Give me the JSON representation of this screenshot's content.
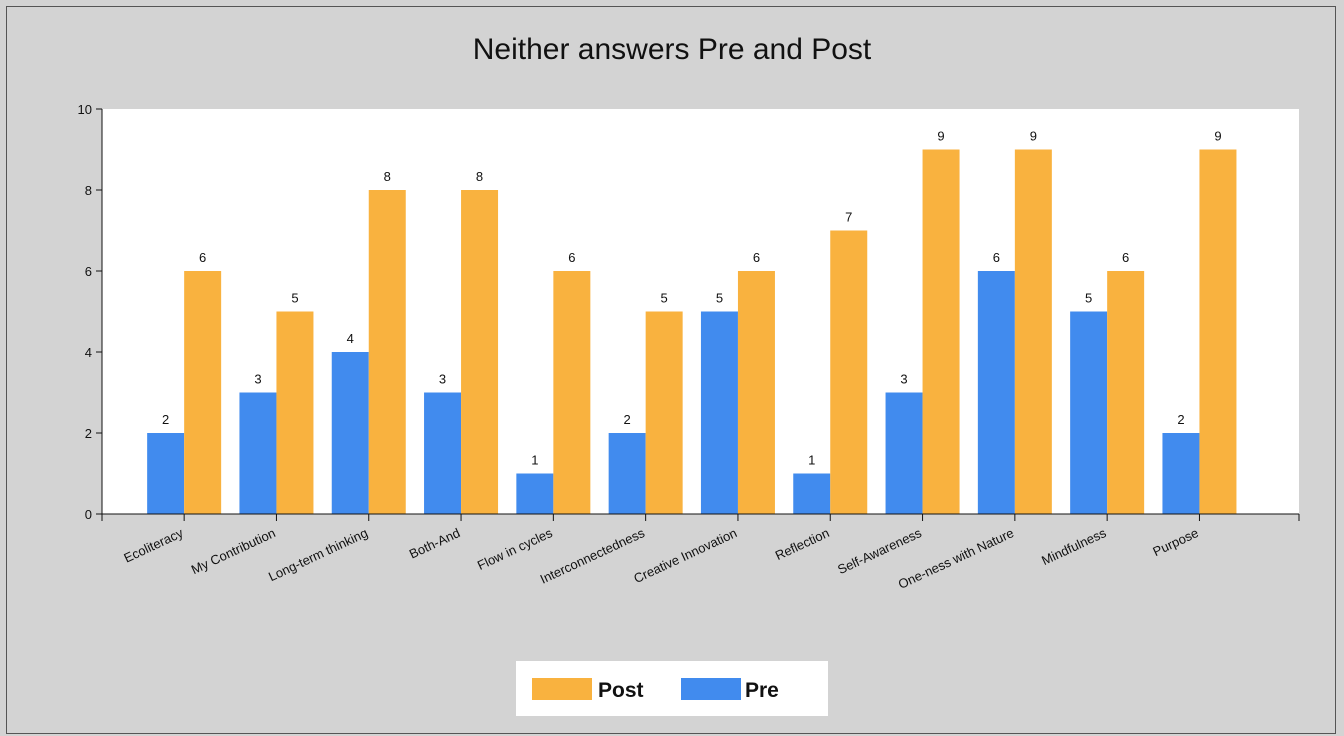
{
  "chart_data": {
    "type": "bar",
    "title": "Neither answers Pre and Post",
    "xlabel": "",
    "ylabel": "",
    "ylim": [
      0,
      10
    ],
    "yticks": [
      0,
      2,
      4,
      6,
      8,
      10
    ],
    "categories": [
      "Ecoliteracy",
      "My Contribution",
      "Long-term thinking",
      "Both-And",
      "Flow in cycles",
      "Interconnectedness",
      "Creative Innovation",
      "Reflection",
      "Self-Awareness",
      "One-ness with Nature",
      "Mindfulness",
      "Purpose"
    ],
    "series": [
      {
        "name": "Pre",
        "color": "#418bee",
        "values": [
          2,
          3,
          4,
          3,
          1,
          2,
          5,
          1,
          3,
          6,
          5,
          2
        ]
      },
      {
        "name": "Post",
        "color": "#f9b23f",
        "values": [
          6,
          5,
          8,
          8,
          6,
          5,
          6,
          7,
          9,
          9,
          6,
          9
        ]
      }
    ],
    "legend": {
      "placement": "bottom-center",
      "order": [
        "Post",
        "Pre"
      ]
    },
    "grid": false,
    "data_labels": true
  }
}
